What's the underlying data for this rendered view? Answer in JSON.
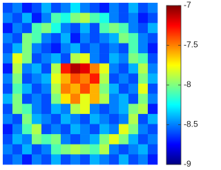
{
  "chart_data": {
    "type": "heatmap",
    "colormap": "jet",
    "z": [
      [
        -8.6,
        -8.5,
        -8.7,
        -8.6,
        -8.4,
        -8.6,
        -8.5,
        -8.3,
        -8.5,
        -8.6,
        -8.7,
        -8.5,
        -8.6,
        -8.4,
        -8.6,
        -8.5
      ],
      [
        -8.5,
        -8.6,
        -8.4,
        -8.7,
        -8.5,
        -8.1,
        -8.2,
        -8.0,
        -7.9,
        -8.1,
        -8.2,
        -8.5,
        -8.6,
        -8.5,
        -8.7,
        -8.6
      ],
      [
        -8.7,
        -8.5,
        -8.6,
        -8.1,
        -8.0,
        -8.2,
        -8.5,
        -8.6,
        -8.4,
        -8.6,
        -8.1,
        -8.0,
        -8.1,
        -8.5,
        -8.6,
        -8.4
      ],
      [
        -8.5,
        -8.6,
        -8.0,
        -8.1,
        -8.5,
        -8.6,
        -8.4,
        -8.7,
        -8.5,
        -8.6,
        -8.5,
        -8.4,
        -8.0,
        -8.1,
        -8.5,
        -8.6
      ],
      [
        -8.6,
        -8.4,
        -8.0,
        -8.5,
        -8.6,
        -8.7,
        -8.5,
        -8.4,
        -8.6,
        -8.5,
        -8.6,
        -8.5,
        -8.6,
        -8.1,
        -8.5,
        -8.7
      ],
      [
        -8.5,
        -7.8,
        -8.0,
        -8.6,
        -8.5,
        -8.4,
        -8.6,
        -7.9,
        -7.8,
        -8.5,
        -8.6,
        -8.4,
        -8.5,
        -8.0,
        -8.1,
        -8.6
      ],
      [
        -8.7,
        -7.9,
        -8.5,
        -8.4,
        -8.6,
        -7.9,
        -7.3,
        -7.1,
        -7.2,
        -7.5,
        -7.8,
        -8.5,
        -8.6,
        -8.4,
        -7.9,
        -8.5
      ],
      [
        -8.5,
        -8.0,
        -8.6,
        -8.5,
        -8.4,
        -7.8,
        -7.6,
        -7.4,
        -7.5,
        -7.3,
        -7.9,
        -8.6,
        -8.5,
        -8.6,
        -8.0,
        -8.4
      ],
      [
        -8.6,
        -8.1,
        -8.4,
        -8.6,
        -8.5,
        -7.9,
        -7.5,
        -7.6,
        -7.4,
        -7.6,
        -8.0,
        -8.4,
        -8.6,
        -8.5,
        -7.8,
        -8.6
      ],
      [
        -8.4,
        -8.0,
        -8.6,
        -8.5,
        -8.6,
        -8.0,
        -7.7,
        -7.5,
        -7.8,
        -7.6,
        -7.9,
        -8.5,
        -8.4,
        -8.6,
        -8.0,
        -8.5
      ],
      [
        -8.6,
        -8.0,
        -8.1,
        -8.5,
        -8.6,
        -8.4,
        -8.5,
        -7.9,
        -7.8,
        -8.5,
        -8.6,
        -8.5,
        -8.4,
        -8.0,
        -7.9,
        -8.7
      ],
      [
        -8.5,
        -8.6,
        -8.0,
        -8.4,
        -8.5,
        -8.6,
        -8.4,
        -8.5,
        -8.6,
        -8.4,
        -8.5,
        -8.6,
        -8.5,
        -7.9,
        -8.6,
        -8.4
      ],
      [
        -8.7,
        -8.5,
        -8.1,
        -7.9,
        -8.6,
        -8.5,
        -8.6,
        -8.4,
        -8.5,
        -8.6,
        -8.4,
        -8.5,
        -7.8,
        -8.0,
        -8.5,
        -8.6
      ],
      [
        -8.6,
        -8.4,
        -8.5,
        -8.0,
        -8.1,
        -8.0,
        -8.5,
        -8.6,
        -8.5,
        -8.4,
        -8.0,
        -7.8,
        -8.0,
        -8.4,
        -8.6,
        -8.5
      ],
      [
        -8.5,
        -8.6,
        -8.4,
        -8.6,
        -8.5,
        -8.1,
        -8.0,
        -7.9,
        -8.0,
        -8.1,
        -7.9,
        -8.5,
        -8.6,
        -8.5,
        -8.4,
        -8.6
      ],
      [
        -8.6,
        -8.5,
        -8.7,
        -8.5,
        -8.6,
        -8.4,
        -8.6,
        -8.5,
        -8.6,
        -8.4,
        -8.5,
        -8.6,
        -8.4,
        -8.6,
        -8.5,
        -8.7
      ]
    ],
    "zlim": [
      -9,
      -7
    ],
    "zticks": [
      -7,
      -7.5,
      -8,
      -8.5,
      -9
    ]
  }
}
